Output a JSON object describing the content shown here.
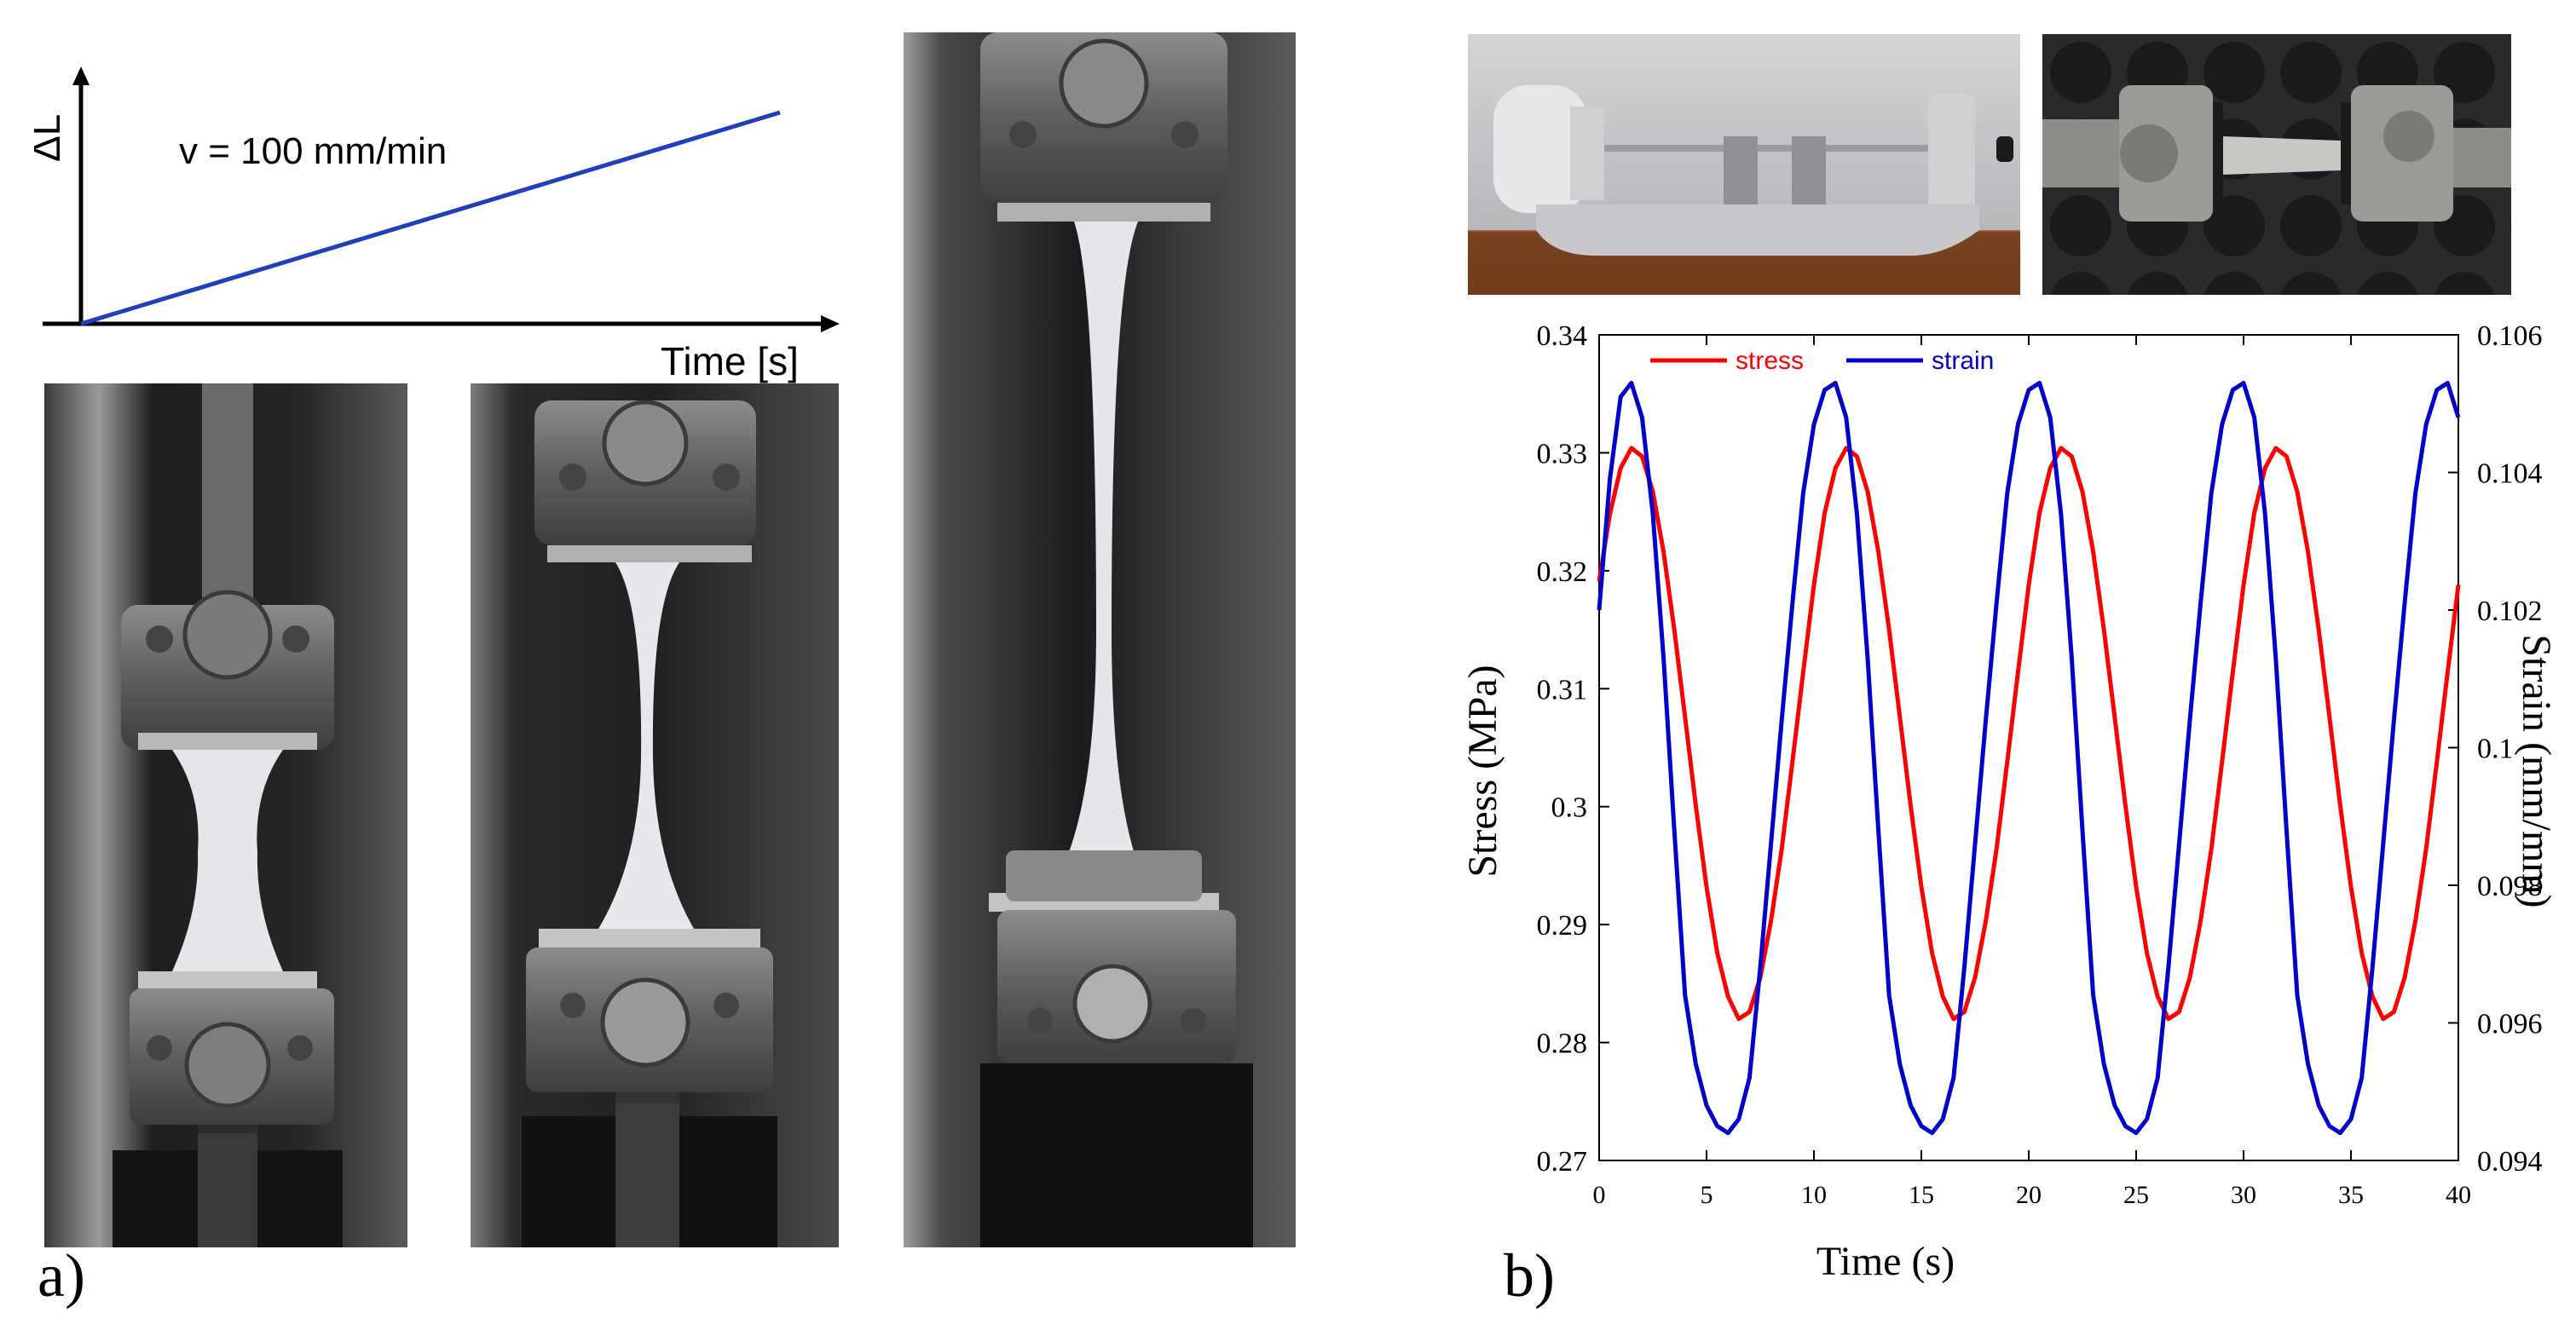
{
  "panel_a": {
    "label": "a)",
    "ramp": {
      "y_axis_label": "ΔL",
      "x_axis_label": "Time [s]",
      "rate_text": "v = 100 mm/min",
      "line_color": "#1f3fbf"
    },
    "photos": [
      {
        "name": "specimen-initial-photo"
      },
      {
        "name": "specimen-necking-photo"
      },
      {
        "name": "specimen-elongated-photo"
      }
    ]
  },
  "panel_b": {
    "label": "b)",
    "photos": [
      {
        "name": "dma-fixture-side-photo"
      },
      {
        "name": "dma-fixture-top-photo"
      }
    ]
  },
  "chart_data": {
    "type": "line",
    "title": "",
    "xlabel": "Time (s)",
    "ylabel": "Stress (MPa)",
    "y2label": "Strain (mm/mm)",
    "xlim": [
      0,
      40
    ],
    "ylim": [
      0.27,
      0.34
    ],
    "y2lim": [
      0.094,
      0.106
    ],
    "xticks": [
      "0",
      "5",
      "10",
      "15",
      "20",
      "25",
      "30",
      "35",
      "40"
    ],
    "yticks": [
      "0.27",
      "0.28",
      "0.29",
      "0.3",
      "0.31",
      "0.32",
      "0.33",
      "0.34"
    ],
    "y2ticks": [
      "0.094",
      "0.096",
      "0.098",
      "0.1",
      "0.102",
      "0.104",
      "0.106"
    ],
    "grid": false,
    "legend_position": "top-left",
    "series": [
      {
        "name": "stress",
        "axis": "left",
        "color": "#ff0000",
        "x": [
          0,
          0.5,
          1,
          1.5,
          2,
          2.5,
          3,
          3.5,
          4,
          4.5,
          5,
          5.5,
          6,
          6.5,
          7,
          7.5,
          8,
          8.5,
          9,
          9.5,
          10,
          10.5,
          11,
          11.5,
          12,
          12.5,
          13,
          13.5,
          14,
          14.5,
          15,
          15.5,
          16,
          16.5,
          17,
          17.5,
          18,
          18.5,
          19,
          19.5,
          20,
          20.5,
          21,
          21.5,
          22,
          22.5,
          23,
          23.5,
          24,
          24.5,
          25,
          25.5,
          26,
          26.5,
          27,
          27.5,
          28,
          28.5,
          29,
          29.5,
          30,
          30.5,
          31,
          31.5,
          32,
          32.5,
          33,
          33.5,
          34,
          34.5,
          35,
          35.5,
          36,
          36.5,
          37,
          37.5,
          38,
          38.5,
          39,
          39.5,
          40
        ],
        "values": [
          0.3191,
          0.3248,
          0.3287,
          0.3304,
          0.3297,
          0.3267,
          0.3216,
          0.315,
          0.3076,
          0.3001,
          0.2932,
          0.2876,
          0.2839,
          0.282,
          0.2826,
          0.2855,
          0.2903,
          0.2964,
          0.3038,
          0.3114,
          0.3188,
          0.3249,
          0.3287,
          0.3304,
          0.3297,
          0.3267,
          0.3216,
          0.315,
          0.3076,
          0.3001,
          0.2932,
          0.2876,
          0.2839,
          0.282,
          0.2826,
          0.2855,
          0.2903,
          0.2964,
          0.3038,
          0.3114,
          0.3188,
          0.3249,
          0.3287,
          0.3304,
          0.3297,
          0.3267,
          0.3216,
          0.315,
          0.3076,
          0.3001,
          0.2932,
          0.2876,
          0.2839,
          0.282,
          0.2826,
          0.2855,
          0.2903,
          0.2964,
          0.3038,
          0.3114,
          0.3188,
          0.3249,
          0.3287,
          0.3304,
          0.3297,
          0.3267,
          0.3216,
          0.315,
          0.3076,
          0.3001,
          0.2932,
          0.2876,
          0.2839,
          0.282,
          0.2826,
          0.2855,
          0.2903,
          0.2964,
          0.3038,
          0.3114,
          0.3188
        ]
      },
      {
        "name": "strain",
        "axis": "right",
        "color": "#0000cc",
        "x": [
          0,
          0.5,
          1,
          1.5,
          2,
          2.5,
          3,
          3.5,
          4,
          4.5,
          5,
          5.5,
          6,
          6.5,
          7,
          7.5,
          8,
          8.5,
          9,
          9.5,
          10,
          10.5,
          11,
          11.5,
          12,
          12.5,
          13,
          13.5,
          14,
          14.5,
          15,
          15.5,
          16,
          16.5,
          17,
          17.5,
          18,
          18.5,
          19,
          19.5,
          20,
          20.5,
          21,
          21.5,
          22,
          22.5,
          23,
          23.5,
          24,
          24.5,
          25,
          25.5,
          26,
          26.5,
          27,
          27.5,
          28,
          28.5,
          29,
          29.5,
          30,
          30.5,
          31,
          31.5,
          32,
          32.5,
          33,
          33.5,
          34,
          34.5,
          35,
          35.5,
          36,
          36.5,
          37,
          37.5,
          38,
          38.5,
          39,
          39.5,
          40
        ],
        "values": [
          0.102,
          0.1039,
          0.1051,
          0.1053,
          0.1048,
          0.1034,
          0.1013,
          0.0988,
          0.0964,
          0.0954,
          0.0948,
          0.0945,
          0.0944,
          0.0946,
          0.0952,
          0.0968,
          0.0986,
          0.1004,
          0.1021,
          0.1037,
          0.1047,
          0.1052,
          0.1053,
          0.1048,
          0.1034,
          0.1013,
          0.0988,
          0.0964,
          0.0954,
          0.0948,
          0.0945,
          0.0944,
          0.0946,
          0.0952,
          0.0968,
          0.0986,
          0.1004,
          0.1021,
          0.1037,
          0.1047,
          0.1052,
          0.1053,
          0.1048,
          0.1034,
          0.1013,
          0.0988,
          0.0964,
          0.0954,
          0.0948,
          0.0945,
          0.0944,
          0.0946,
          0.0952,
          0.0968,
          0.0986,
          0.1004,
          0.1021,
          0.1037,
          0.1047,
          0.1052,
          0.1053,
          0.1048,
          0.1034,
          0.1013,
          0.0988,
          0.0964,
          0.0954,
          0.0948,
          0.0945,
          0.0944,
          0.0946,
          0.0952,
          0.0968,
          0.0986,
          0.1004,
          0.1021,
          0.1037,
          0.1047,
          0.1052,
          0.1053,
          0.1048
        ]
      }
    ]
  }
}
